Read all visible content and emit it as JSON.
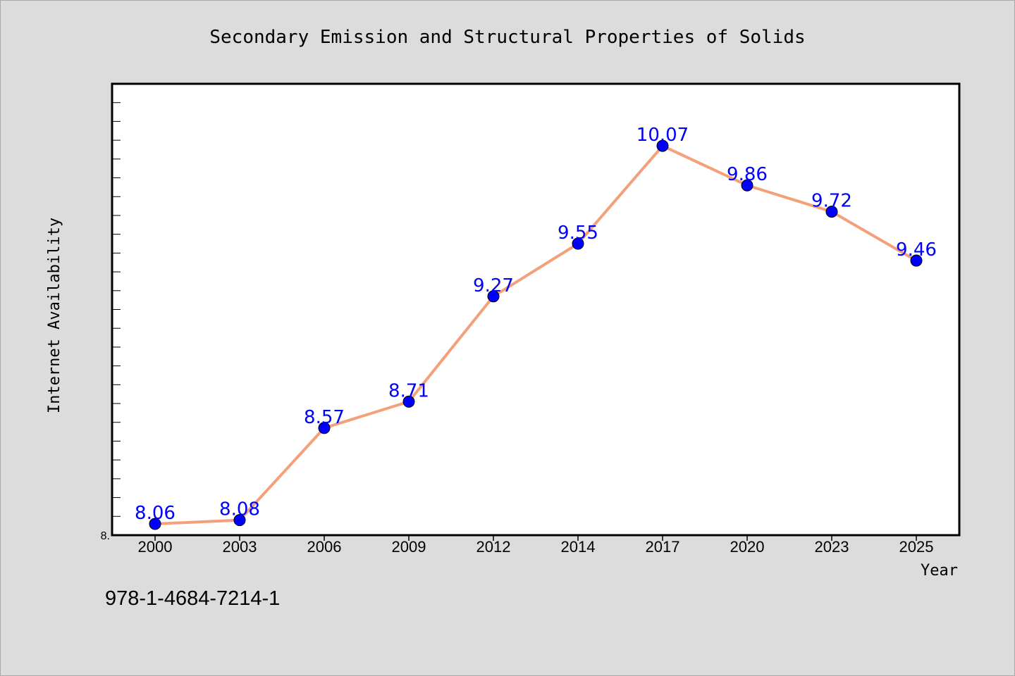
{
  "chart_data": {
    "type": "line",
    "title": "Secondary Emission and Structural Properties of Solids",
    "xlabel": "Year",
    "ylabel": "Internet Availability",
    "categories": [
      "2000",
      "2003",
      "2006",
      "2009",
      "2012",
      "2014",
      "2017",
      "2020",
      "2023",
      "2025"
    ],
    "series": [
      {
        "values": [
          8.06,
          8.08,
          8.57,
          8.71,
          9.27,
          9.55,
          10.07,
          9.86,
          9.72,
          9.46
        ],
        "data_labels": [
          "8.06",
          "8.08",
          "8.57",
          "8.71",
          "9.27",
          "9.55",
          "10.07",
          "9.86",
          "9.72",
          "9.46"
        ],
        "line_color": "#f4a07a",
        "marker_color": "#0000ff"
      }
    ],
    "ylim": [
      8.0,
      10.4
    ],
    "y_minor_tick_step": 0.1,
    "ytick_labels": [
      {
        "value": 8.0,
        "label": "8."
      }
    ],
    "grid": false,
    "legend": "none"
  },
  "footer": {
    "isbn": "978-1-4684-7214-1"
  },
  "colors": {
    "page_background": "#dcdcdc",
    "plot_background": "#ffffff",
    "line": "#f4a07a",
    "marker": "#0000ff",
    "data_label": "#0000ff"
  }
}
